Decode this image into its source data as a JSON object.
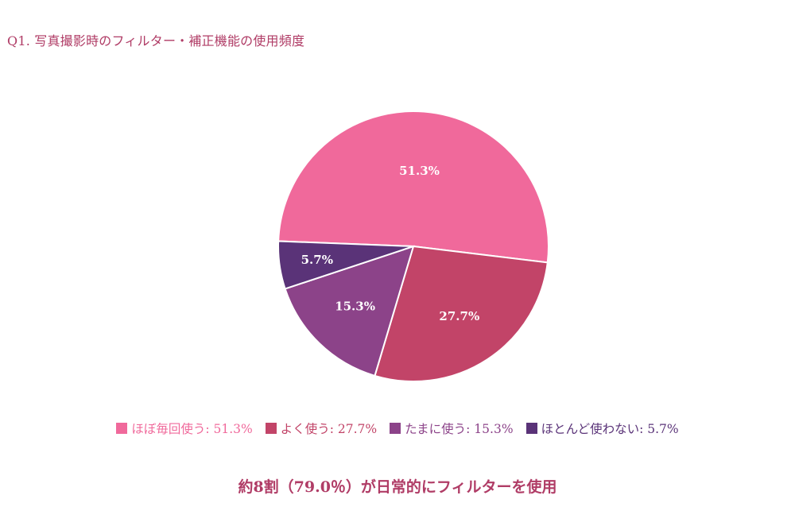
{
  "title": "Q1. 写真撮影時のフィルター・補正機能の使用頻度",
  "footer": "約8割（79.0％）が日常的にフィルターを使用",
  "chart_data": {
    "type": "pie",
    "title": "Q1. 写真撮影時のフィルター・補正機能の使用頻度",
    "legend_position": "bottom",
    "slices": [
      {
        "label": "ほぼ毎回使う",
        "value": 51.3,
        "display": "51.3%",
        "legend": "ほぼ毎回使う: 51.3%",
        "color": "#f0699b",
        "legend_color": "#f0699b"
      },
      {
        "label": "よく使う",
        "value": 27.7,
        "display": "27.7%",
        "legend": "よく使う: 27.7%",
        "color": "#c24468",
        "legend_color": "#c24468"
      },
      {
        "label": "たまに使う",
        "value": 15.3,
        "display": "15.3%",
        "legend": "たまに使う: 15.3%",
        "color": "#8c4389",
        "legend_color": "#8c4389"
      },
      {
        "label": "ほとんど使わない",
        "value": 5.7,
        "display": "5.7%",
        "legend": "ほとんど使わない: 5.7%",
        "color": "#5a3378",
        "legend_color": "#5a3378"
      }
    ]
  }
}
